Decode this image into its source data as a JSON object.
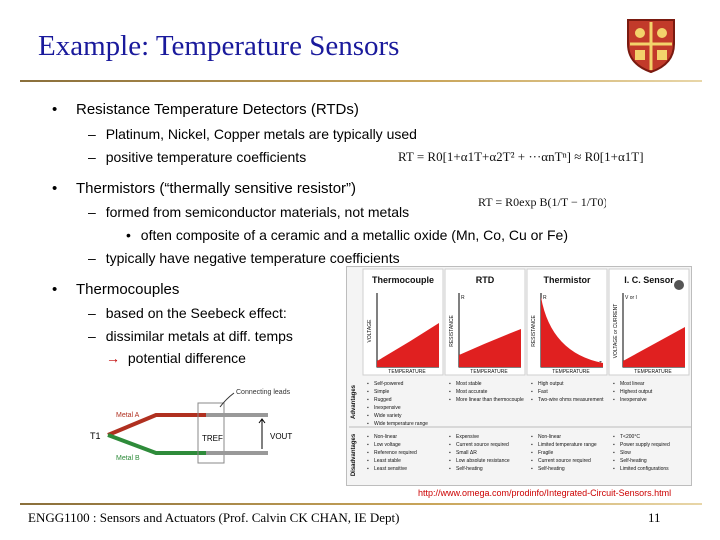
{
  "slide": {
    "title": "Example: Temperature Sensors",
    "bullets": [
      {
        "marker": "•",
        "text": "Resistance Temperature Detectors (RTDs)",
        "sub": [
          {
            "marker": "–",
            "text": "Platinum, Nickel, Copper metals are typically used"
          },
          {
            "marker": "–",
            "text": "positive temperature coefficients"
          }
        ]
      },
      {
        "marker": "•",
        "text": "Thermistors (“thermally sensitive resistor”)",
        "sub": [
          {
            "marker": "–",
            "text": "formed from semiconductor materials, not metals"
          },
          {
            "marker": "•",
            "text": "often composite of a ceramic and a metallic oxide (Mn, Co, Cu or Fe)"
          },
          {
            "marker": "–",
            "text": "typically have negative temperature coefficients"
          }
        ]
      },
      {
        "marker": "•",
        "text": "Thermocouples",
        "sub": [
          {
            "marker": "–",
            "text": "based on the Seebeck effect:"
          },
          {
            "marker": "–",
            "text": "dissimilar metals at diff. temps"
          },
          {
            "marker": "→",
            "text": "potential difference"
          }
        ]
      }
    ],
    "equations": {
      "rtd": "RT = R0[1+α1T+α2T² + ···αnTⁿ] ≈ R0[1+α1T]",
      "thermistor": "RT = R0exp B(1/T − 1/T0)"
    }
  },
  "thermocouple_diagram": {
    "metal_a": "Metal A",
    "metal_b": "Metal B",
    "connecting_leads": "Connecting leads",
    "t1": "T1",
    "tref": "TREF",
    "vout": "VOUT",
    "colors": {
      "metal_a": "#b03020",
      "metal_b": "#2e8b3a",
      "leads": "#999999"
    }
  },
  "sensor_table": {
    "columns": [
      "Thermocouple",
      "RTD",
      "Thermistor",
      "I. C. Sensor"
    ],
    "row_labels": [
      "Advantages",
      "Disadvantages"
    ],
    "graph_labels": {
      "thermocouple": {
        "y": "VOLTAGE",
        "x": "TEMPERATURE",
        "t": "T"
      },
      "rtd": {
        "y": "RESISTANCE",
        "x": "TEMPERATURE",
        "r": "R",
        "t": "T"
      },
      "thermistor": {
        "y": "RESISTANCE",
        "x": "TEMPERATURE",
        "r": "R",
        "t": "T"
      },
      "ic": {
        "y": "VOLTAGE or CURRENT",
        "x": "TEMPERATURE",
        "v": "V or I",
        "t": "T"
      }
    },
    "advantages": [
      [
        "Self-powered",
        "Simple",
        "Rugged",
        "Inexpensive",
        "Wide variety",
        "Wide temperature range"
      ],
      [
        "Most stable",
        "Most accurate",
        "More linear than thermocouple"
      ],
      [
        "High output",
        "Fast",
        "Two-wire ohms measurement"
      ],
      [
        "Most linear",
        "Highest output",
        "Inexpensive"
      ]
    ],
    "disadvantages": [
      [
        "Non-linear",
        "Low voltage",
        "Reference required",
        "Least stable",
        "Least sensitive"
      ],
      [
        "Expensive",
        "Current source required",
        "Small ΔR",
        "Low absolute resistance",
        "Self-heating"
      ],
      [
        "Non-linear",
        "Limited temperature range",
        "Fragile",
        "Current source required",
        "Self-heating"
      ],
      [
        "T<200°C",
        "Power supply required",
        "Slow",
        "Self-heating",
        "Limited configurations"
      ]
    ],
    "source_url": "http://www.omega.com/prodinfo/Integrated-Circuit-Sensors.html"
  },
  "footer": {
    "text": "ENGG1100 : Sensors and Actuators (Prof. Calvin CK CHAN, IE Dept)",
    "page": "11"
  },
  "colors": {
    "title": "#1a1a9c",
    "accent_rule": "#c9a55a",
    "curve": "#e02020",
    "crest": "#b0201a"
  }
}
